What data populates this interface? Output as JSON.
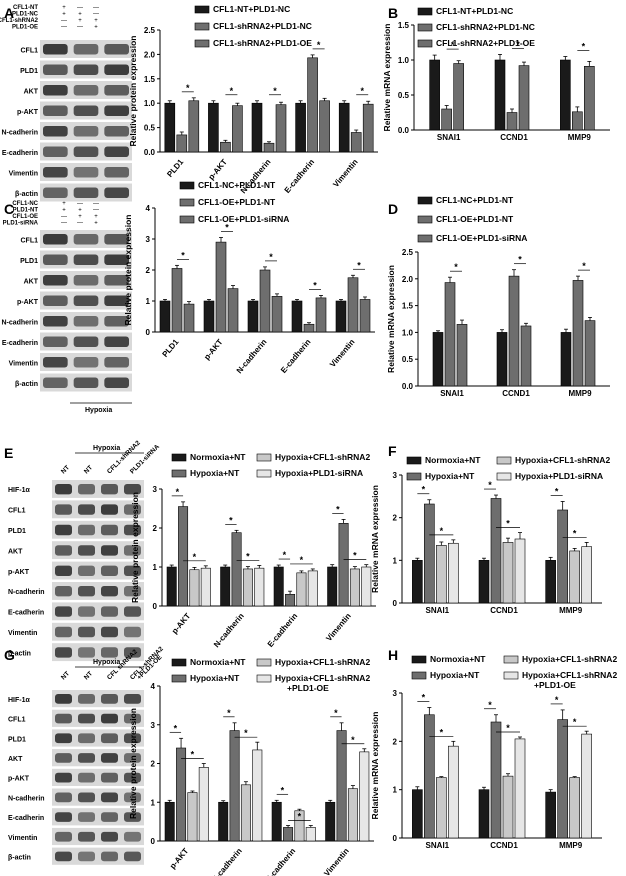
{
  "colors": {
    "black": "#1a1a1a",
    "dark_gray": "#6e6e6e",
    "light_gray": "#c8c8c8",
    "lighter_gray": "#e6e6e6"
  },
  "panels": [
    {
      "letter": "A",
      "blot": {
        "cond_labels": [
          "CFL1-NT",
          "PLD1-NC",
          "CFL1-shRNA2",
          "PLD1-OE"
        ],
        "cond_signs": [
          [
            "+",
            "—",
            "—"
          ],
          [
            "+",
            "+",
            "—"
          ],
          [
            "—",
            "+",
            "+"
          ],
          [
            "—",
            "—",
            "+"
          ]
        ],
        "rows": [
          "CFL1",
          "PLD1",
          "AKT",
          "p-AKT",
          "N-cadherin",
          "E-cadherin",
          "Vimentin",
          "β-actin"
        ]
      },
      "chart": {
        "type": "bar",
        "ylabel": "Relative protein expression",
        "ylim": [
          0,
          2.5
        ],
        "yticks": [
          "0.0",
          "0.5",
          "1.0",
          "1.5",
          "2.0",
          "2.5"
        ],
        "categories": [
          "PLD1",
          "p-AKT",
          "N-cadherin",
          "E-cadherin",
          "Vimentin"
        ],
        "series": [
          {
            "name": "CFL1-NT+PLD1-NC",
            "values": [
              1.0,
              1.0,
              1.0,
              1.0,
              1.0
            ],
            "err": [
              0.05,
              0.05,
              0.05,
              0.05,
              0.05
            ]
          },
          {
            "name": "CFL1-shRNA2+PLD1-NC",
            "values": [
              0.35,
              0.2,
              0.18,
              1.93,
              0.4
            ],
            "err": [
              0.06,
              0.04,
              0.03,
              0.06,
              0.05
            ]
          },
          {
            "name": "CFL1-shRNA2+PLD1-OE",
            "values": [
              1.05,
              0.95,
              0.97,
              1.05,
              0.98
            ],
            "err": [
              0.06,
              0.05,
              0.05,
              0.05,
              0.06
            ]
          }
        ],
        "significance": [
          "*",
          "*",
          "*",
          "*",
          "*"
        ]
      }
    },
    {
      "letter": "B",
      "chart": {
        "type": "bar",
        "ylabel": "Relative mRNA expression",
        "ylim": [
          0,
          1.5
        ],
        "yticks": [
          "0.0",
          "0.5",
          "1.0",
          "1.5"
        ],
        "categories": [
          "SNAI1",
          "CCND1",
          "MMP9"
        ],
        "series": [
          {
            "name": "CFL1-NT+PLD1-NC",
            "values": [
              1.0,
              1.0,
              1.0
            ],
            "err": [
              0.07,
              0.08,
              0.05
            ]
          },
          {
            "name": "CFL1-shRNA2+PLD1-NC",
            "values": [
              0.3,
              0.25,
              0.26
            ],
            "err": [
              0.05,
              0.05,
              0.07
            ]
          },
          {
            "name": "CFL1-shRNA2+PLD1-OE",
            "values": [
              0.95,
              0.92,
              0.91
            ],
            "err": [
              0.04,
              0.05,
              0.07
            ]
          }
        ],
        "significance": [
          "*",
          "*",
          "*"
        ]
      }
    },
    {
      "letter": "C",
      "blot": {
        "cond_labels": [
          "CFL1-NC",
          "PLD1-NT",
          "CFL1-OE",
          "PLD1-siRNA"
        ],
        "cond_signs": [
          [
            "+",
            "—",
            "—"
          ],
          [
            "+",
            "+",
            "—"
          ],
          [
            "—",
            "+",
            "+"
          ],
          [
            "—",
            "—",
            "+"
          ]
        ],
        "rows": [
          "CFL1",
          "PLD1",
          "AKT",
          "p-AKT",
          "N-cadherin",
          "E-cadherin",
          "Vimentin",
          "β-actin"
        ],
        "footer": "Hypoxia"
      },
      "chart": {
        "type": "bar",
        "ylabel": "Relative protein expression",
        "ylim": [
          0,
          4
        ],
        "yticks": [
          "0",
          "1",
          "2",
          "3",
          "4"
        ],
        "categories": [
          "PLD1",
          "p-AKT",
          "N-cadherin",
          "E-cadherin",
          "Vimentin"
        ],
        "series": [
          {
            "name": "CFL1-NC+PLD1-NT",
            "values": [
              1.0,
              1.0,
              1.0,
              1.0,
              1.0
            ],
            "err": [
              0.05,
              0.05,
              0.05,
              0.05,
              0.05
            ]
          },
          {
            "name": "CFL1-OE+PLD1-NT",
            "values": [
              2.05,
              2.9,
              2.0,
              0.25,
              1.75
            ],
            "err": [
              0.1,
              0.15,
              0.1,
              0.05,
              0.08
            ]
          },
          {
            "name": "CFL1-OE+PLD1-siRNA",
            "values": [
              0.9,
              1.4,
              1.15,
              1.1,
              1.05
            ],
            "err": [
              0.08,
              0.1,
              0.08,
              0.08,
              0.08
            ]
          }
        ],
        "significance": [
          "*",
          "*",
          "*",
          "*",
          "*"
        ]
      }
    },
    {
      "letter": "D",
      "chart": {
        "type": "bar",
        "ylabel": "Relative mRNA expression",
        "ylim": [
          0,
          2.5
        ],
        "yticks": [
          "0.0",
          "0.5",
          "1.0",
          "1.5",
          "2.0",
          "2.5"
        ],
        "categories": [
          "SNAI1",
          "CCND1",
          "MMP9"
        ],
        "series": [
          {
            "name": "CFL1-NC+PLD1-NT",
            "values": [
              1.0,
              1.0,
              1.0
            ],
            "err": [
              0.03,
              0.05,
              0.06
            ]
          },
          {
            "name": "CFL1-OE+PLD1-NT",
            "values": [
              1.93,
              2.05,
              1.97
            ],
            "err": [
              0.1,
              0.12,
              0.08
            ]
          },
          {
            "name": "CFL1-OE+PLD1-siRNA",
            "values": [
              1.15,
              1.12,
              1.22
            ],
            "err": [
              0.08,
              0.05,
              0.06
            ]
          }
        ],
        "significance": [
          "*",
          "*",
          "*"
        ]
      }
    },
    {
      "letter": "E",
      "blot": {
        "col_labels": [
          "NT",
          "NT",
          "CFL1-shRNA2",
          "PLD1-siRNA"
        ],
        "header": "Hypoxia",
        "rows": [
          "HIF-1α",
          "CFL1",
          "PLD1",
          "AKT",
          "p-AKT",
          "N-cadherin",
          "E-cadherin",
          "Vimentin",
          "β-actin"
        ]
      },
      "chart": {
        "type": "bar",
        "ylabel": "Relative protein expression",
        "ylim": [
          0,
          3
        ],
        "yticks": [
          "0",
          "1",
          "2",
          "3"
        ],
        "categories": [
          "p-AKT",
          "N-cadherin",
          "E-cadherin",
          "Vimentin"
        ],
        "series": [
          {
            "name": "Normoxia+NT",
            "values": [
              1.0,
              1.0,
              1.0,
              1.0
            ],
            "err": [
              0.05,
              0.05,
              0.05,
              0.06
            ]
          },
          {
            "name": "Hypoxia+NT",
            "values": [
              2.55,
              1.88,
              0.3,
              2.12
            ],
            "err": [
              0.12,
              0.06,
              0.08,
              0.1
            ]
          },
          {
            "name": "Hypoxia+CFL1-shRNA2",
            "values": [
              0.93,
              0.95,
              0.85,
              0.95
            ],
            "err": [
              0.06,
              0.06,
              0.05,
              0.06
            ]
          },
          {
            "name": "Hypoxia+PLD1-siRNA",
            "values": [
              0.97,
              0.97,
              0.9,
              1.0
            ],
            "err": [
              0.06,
              0.07,
              0.05,
              0.06
            ]
          }
        ],
        "significance": [
          "*",
          "*",
          "*",
          "*"
        ]
      }
    },
    {
      "letter": "F",
      "chart": {
        "type": "bar",
        "ylabel": "Relative mRNA expression",
        "ylim": [
          0,
          3
        ],
        "yticks": [
          "0",
          "1",
          "2",
          "3"
        ],
        "categories": [
          "SNAI1",
          "CCND1",
          "MMP9"
        ],
        "series": [
          {
            "name": "Normoxia+NT",
            "values": [
              1.0,
              1.0,
              1.0
            ],
            "err": [
              0.05,
              0.05,
              0.07
            ]
          },
          {
            "name": "Hypoxia+NT",
            "values": [
              2.32,
              2.45,
              2.18
            ],
            "err": [
              0.1,
              0.08,
              0.2
            ]
          },
          {
            "name": "Hypoxia+CFL1-shRNA2",
            "values": [
              1.35,
              1.42,
              1.22
            ],
            "err": [
              0.08,
              0.1,
              0.06
            ]
          },
          {
            "name": "Hypoxia+PLD1-siRNA",
            "values": [
              1.4,
              1.5,
              1.32
            ],
            "err": [
              0.08,
              0.15,
              0.1
            ]
          }
        ],
        "significance": [
          "*",
          "*",
          "*"
        ]
      }
    },
    {
      "letter": "G",
      "blot": {
        "col_labels": [
          "NT",
          "NT",
          "CFL shRNA2",
          "CFL1-shRNA2 +PLD1-OE"
        ],
        "header": "Hypoxia",
        "rows": [
          "HIF-1α",
          "CFL1",
          "PLD1",
          "AKT",
          "p-AKT",
          "N-cadherin",
          "E-cadherin",
          "Vimentin",
          "β-actin"
        ]
      },
      "chart": {
        "type": "bar",
        "ylabel": "Relative protein expression",
        "ylim": [
          0,
          4
        ],
        "yticks": [
          "0",
          "1",
          "2",
          "3",
          "4"
        ],
        "categories": [
          "p-AKT",
          "N-cadherin",
          "E-cadherin",
          "Vimentin"
        ],
        "series": [
          {
            "name": "Normoxia+NT",
            "values": [
              1.0,
              1.0,
              1.0,
              1.0
            ],
            "err": [
              0.05,
              0.04,
              0.05,
              0.05
            ]
          },
          {
            "name": "Hypoxia+NT",
            "values": [
              2.4,
              2.85,
              0.35,
              2.85
            ],
            "err": [
              0.25,
              0.2,
              0.05,
              0.2
            ]
          },
          {
            "name": "Hypoxia+CFL1-shRNA2",
            "values": [
              1.25,
              1.45,
              0.78,
              1.35
            ],
            "err": [
              0.04,
              0.08,
              0.04,
              0.08
            ]
          },
          {
            "name": "Hypoxia+CFL1-shRNA2\n+PLD1-OE",
            "values": [
              1.9,
              2.35,
              0.35,
              2.3
            ],
            "err": [
              0.1,
              0.2,
              0.05,
              0.08
            ]
          }
        ],
        "significance": [
          "*",
          "*",
          "*",
          "*"
        ]
      }
    },
    {
      "letter": "H",
      "chart": {
        "type": "bar",
        "ylabel": "Relative mRNA expression",
        "ylim": [
          0,
          3
        ],
        "yticks": [
          "0",
          "1",
          "2",
          "3"
        ],
        "categories": [
          "SNAI1",
          "CCND1",
          "MMP9"
        ],
        "series": [
          {
            "name": "Normoxia+NT",
            "values": [
              1.0,
              1.0,
              0.95
            ],
            "err": [
              0.06,
              0.05,
              0.05
            ]
          },
          {
            "name": "Hypoxia+NT",
            "values": [
              2.55,
              2.4,
              2.45
            ],
            "err": [
              0.15,
              0.15,
              0.2
            ]
          },
          {
            "name": "Hypoxia+CFL1-shRNA2",
            "values": [
              1.25,
              1.28,
              1.25
            ],
            "err": [
              0.02,
              0.05,
              0.02
            ]
          },
          {
            "name": "Hypoxia+CFL1-shRNA2\n+PLD1-OE",
            "values": [
              1.9,
              2.05,
              2.15
            ],
            "err": [
              0.1,
              0.04,
              0.06
            ]
          }
        ],
        "significance": [
          "*",
          "*",
          "*"
        ]
      }
    }
  ]
}
